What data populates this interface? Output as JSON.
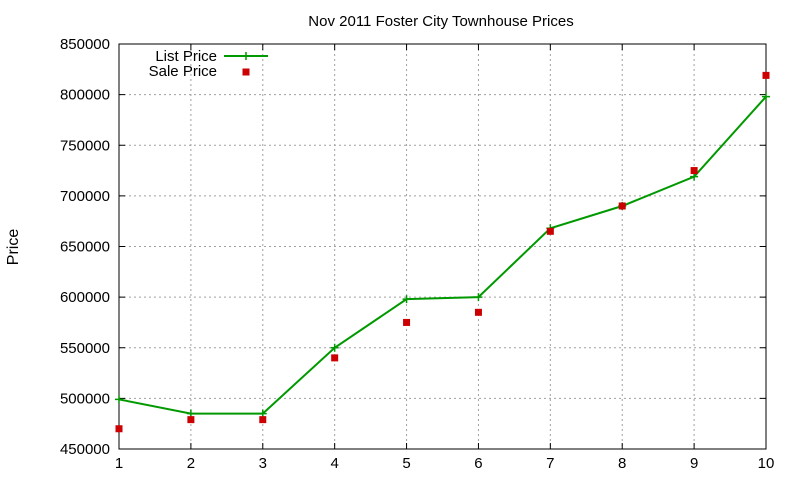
{
  "chart_data": {
    "type": "line",
    "title": "Nov 2011 Foster City Townhouse Prices",
    "xlabel": "",
    "ylabel": "Price",
    "xlim": [
      1,
      10
    ],
    "ylim": [
      450000,
      850000
    ],
    "x_ticks": [
      "1",
      "2",
      "3",
      "4",
      "5",
      "6",
      "7",
      "8",
      "9",
      "10"
    ],
    "y_ticks": [
      "450000",
      "500000",
      "550000",
      "600000",
      "650000",
      "700000",
      "750000",
      "800000",
      "850000"
    ],
    "grid": true,
    "legend_position": "top-left",
    "x": [
      1,
      2,
      3,
      4,
      5,
      6,
      7,
      8,
      9,
      10
    ],
    "series": [
      {
        "name": "List Price",
        "style": "line-points",
        "color": "#009900",
        "marker": "plus",
        "values": [
          499000,
          485000,
          485000,
          550000,
          598000,
          600000,
          668000,
          690000,
          719000,
          798000
        ]
      },
      {
        "name": "Sale Price",
        "style": "points",
        "color": "#cc0000",
        "marker": "square",
        "values": [
          470000,
          479000,
          479000,
          540000,
          575000,
          585000,
          665000,
          690000,
          725000,
          819000
        ]
      }
    ]
  }
}
